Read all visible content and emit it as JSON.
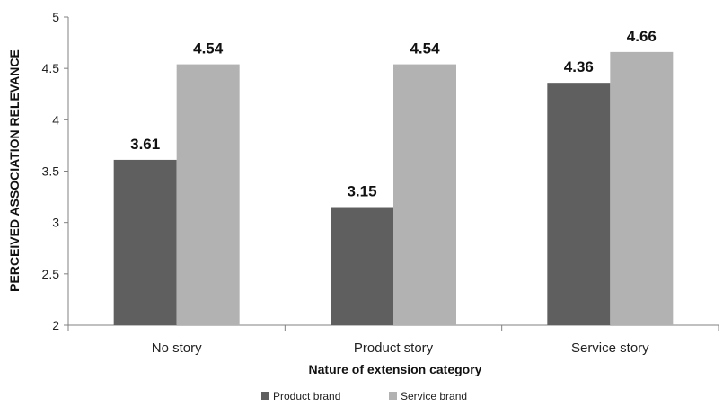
{
  "chart_data": {
    "type": "bar",
    "categories": [
      "No story",
      "Product story",
      "Service story"
    ],
    "series": [
      {
        "name": "Product brand",
        "values": [
          3.61,
          3.15,
          4.36
        ],
        "color": "#5f5f5f"
      },
      {
        "name": "Service brand",
        "values": [
          4.54,
          4.54,
          4.66
        ],
        "color": "#b2b2b2"
      }
    ],
    "data_labels": [
      [
        "3.61",
        "3.15",
        "4.36"
      ],
      [
        "4.54",
        "4.54",
        "4.66"
      ]
    ],
    "xlabel": "Nature of extension category",
    "ylabel": "PERCEIVED ASSOCIATION RELEVANCE",
    "ylim": [
      2,
      5
    ],
    "yticks": [
      2,
      2.5,
      3,
      3.5,
      4,
      4.5,
      5
    ],
    "ytick_labels": [
      "2",
      "2.5",
      "3",
      "3.5",
      "4",
      "4.5",
      "5"
    ],
    "grid": false,
    "legend_position": "bottom"
  }
}
